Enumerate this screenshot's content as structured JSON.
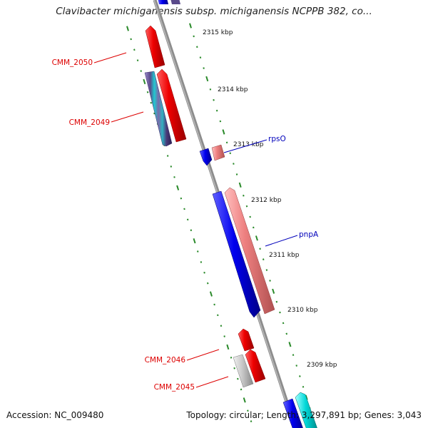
{
  "title": "Clavibacter michiganensis subsp. michiganensis NCPPB 382, co...",
  "footer": {
    "accession": "Accession: NC_009480",
    "stats": "Topology: circular; Length: 3,297,891 bp; Genes: 3,043"
  },
  "colors": {
    "backbone": "#8c8c8c",
    "tick": "#2a8a2a",
    "red": "#ee0000",
    "pink": "#ee8080",
    "blue": "#0000ee",
    "cyan": "#00d8d8",
    "gray": "#c8c8c8",
    "purple": "#6a5a9a",
    "label_red": "#dd0000",
    "label_blue": "#0000bb"
  },
  "kbp_labels": [
    "2315 kbp",
    "2314 kbp",
    "2313 kbp",
    "2312 kbp",
    "2311 kbp",
    "2310 kbp",
    "2309 kbp"
  ],
  "gene_labels": [
    "CMM_2050",
    "CMM_2049",
    "rpsO",
    "pnpA",
    "CMM_2046",
    "CMM_2045"
  ]
}
